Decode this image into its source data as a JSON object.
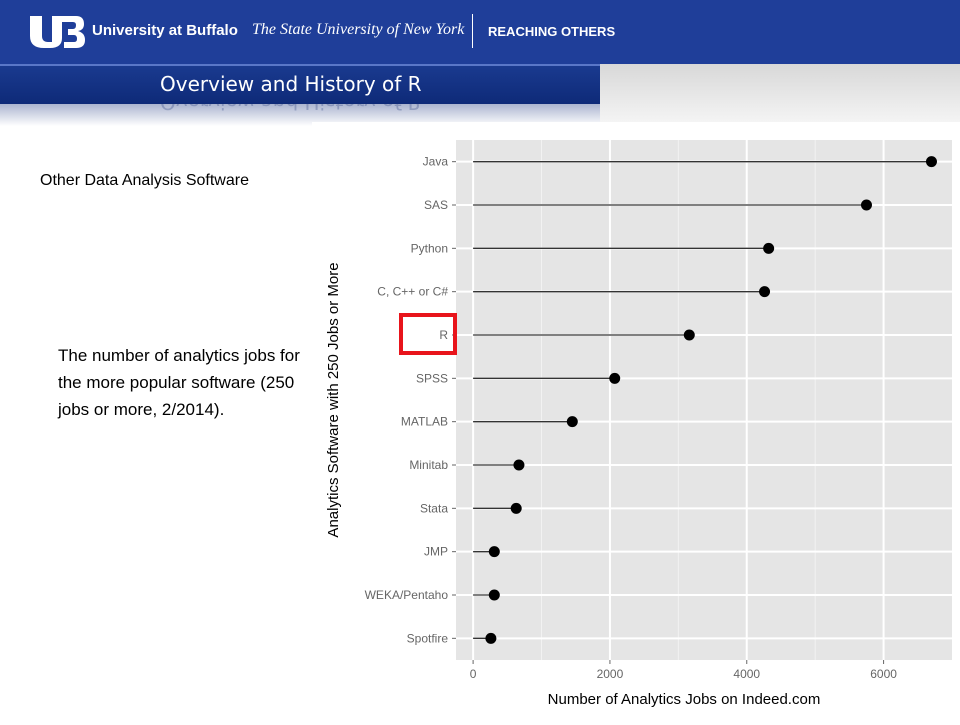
{
  "header": {
    "university": "University at Buffalo",
    "suny": "The State University of New York",
    "tagline": "REACHING OTHERS",
    "colors": {
      "brand": "#1f3e99"
    }
  },
  "slide": {
    "title": "Overview and History of R",
    "subheading": "Other Data Analysis Software",
    "description": "The number of analytics jobs for the more popular software (250 jobs or more, 2/2014)."
  },
  "chart_data": {
    "type": "scatter",
    "style": "dot-plot",
    "categories": [
      "Java",
      "SAS",
      "Python",
      "C, C++ or C#",
      "R",
      "SPSS",
      "MATLAB",
      "Minitab",
      "Stata",
      "JMP",
      "WEKA/Pentaho",
      "Spotfire"
    ],
    "values": [
      6700,
      5750,
      4320,
      4260,
      3160,
      2070,
      1450,
      670,
      630,
      310,
      310,
      260
    ],
    "xlabel": "Number of Analytics Jobs on Indeed.com",
    "ylabel": "Analytics Software with 250 Jobs or More",
    "xticks": [
      "0",
      "2000",
      "4000",
      "6000"
    ],
    "xlim": [
      -250,
      7000
    ],
    "grid": true,
    "highlight": "R",
    "highlight_color": "#e8141b",
    "panel_color": "#e5e5e5"
  }
}
